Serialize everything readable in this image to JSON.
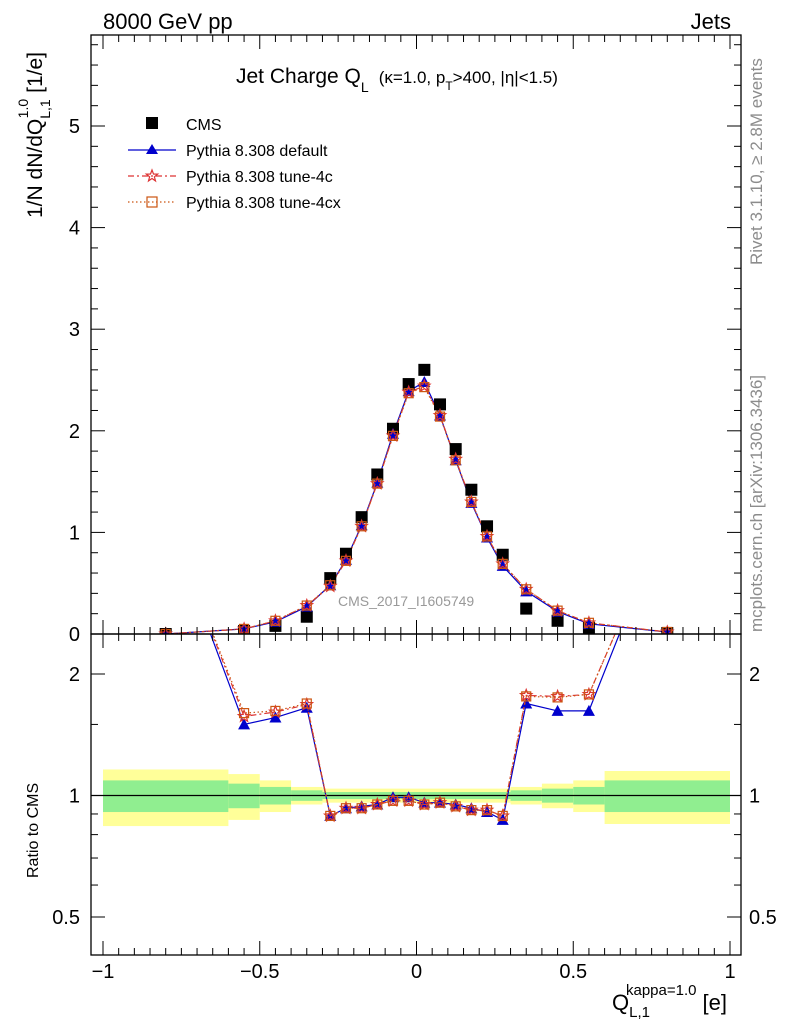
{
  "header": {
    "left": "8000 GeV pp",
    "right": "Jets"
  },
  "side_text": {
    "rivet": "Rivet 3.1.10, ≥ 2.8M events",
    "mcplots": "mcplots.cern.ch [arXiv:1306.3436]"
  },
  "chart_data": [
    {
      "type": "line",
      "title": "Jet Charge Q_L (κ=1.0, p_T>400, |η|<1.5)",
      "title_parts": {
        "main": "Jet Charge Q",
        "main_sub": "L",
        "paren_open": "(κ=1.0, p",
        "pt_sub": "T",
        "paren_rest": ">400, |η|<1.5)"
      },
      "ylabel": "1/N dN/dQ_{L,1}^{1.0} [1/e]",
      "ylabel_parts": {
        "pre": "1/N dN/dQ",
        "sub": "L,1",
        "sup": "1.0",
        "post": "[1/e]"
      },
      "watermark": "CMS_2017_I1605749",
      "xlim": [
        -1.05,
        1.05
      ],
      "ylim": [
        0,
        5.9
      ],
      "yticks": [
        0,
        1,
        2,
        3,
        4,
        5
      ],
      "yticklabels": [
        "0",
        "1",
        "2",
        "3",
        "4",
        "5"
      ],
      "legend_position": "top-left",
      "x": [
        -0.8,
        -0.55,
        -0.45,
        -0.35,
        -0.275,
        -0.225,
        -0.175,
        -0.125,
        -0.075,
        -0.025,
        0.025,
        0.075,
        0.125,
        0.175,
        0.225,
        0.275,
        0.35,
        0.45,
        0.55,
        0.8
      ],
      "series": [
        {
          "name": "CMS",
          "color": "#000000",
          "marker": "square",
          "values": [
            0.0,
            0.03,
            0.08,
            0.17,
            0.55,
            0.79,
            1.15,
            1.57,
            2.02,
            2.46,
            2.6,
            2.26,
            1.82,
            1.42,
            1.06,
            0.78,
            0.25,
            0.13,
            0.06,
            0.01
          ]
        },
        {
          "name": "Pythia 8.308 default",
          "color": "#0000cc",
          "marker": "triangle",
          "values": [
            0.0,
            0.05,
            0.12,
            0.27,
            0.48,
            0.73,
            1.07,
            1.49,
            1.97,
            2.39,
            2.48,
            2.15,
            1.71,
            1.29,
            0.95,
            0.67,
            0.42,
            0.22,
            0.1,
            0.02
          ]
        },
        {
          "name": "Pythia 8.308 tune-4c",
          "color": "#dd3333",
          "marker": "star",
          "values": [
            0.0,
            0.05,
            0.13,
            0.28,
            0.47,
            0.72,
            1.06,
            1.48,
            1.95,
            2.38,
            2.44,
            2.15,
            1.72,
            1.3,
            0.96,
            0.69,
            0.44,
            0.23,
            0.11,
            0.02
          ]
        },
        {
          "name": "Pythia 8.308 tune-4cx",
          "color": "#cc5511",
          "marker": "open-square",
          "values": [
            0.0,
            0.05,
            0.13,
            0.28,
            0.48,
            0.72,
            1.06,
            1.48,
            1.95,
            2.37,
            2.43,
            2.14,
            1.71,
            1.3,
            0.96,
            0.69,
            0.44,
            0.23,
            0.11,
            0.02
          ]
        }
      ]
    },
    {
      "type": "line",
      "ylabel": "Ratio to CMS",
      "xlabel": "Q_{L,1}^{kappa=1.0} [e]",
      "xlabel_parts": {
        "pre": "Q",
        "sub": "L,1",
        "sup": "kappa=1.0",
        "post": "[e]"
      },
      "scale": "log",
      "xlim": [
        -1.05,
        1.05
      ],
      "ylim": [
        0.4,
        2.45
      ],
      "yticks": [
        0.5,
        1,
        2
      ],
      "yticklabels": [
        "0.5",
        "1",
        "2"
      ],
      "xticks": [
        -1,
        -0.5,
        0,
        0.5,
        1
      ],
      "xticklabels": [
        "−1",
        "−0.5",
        "0",
        "0.5",
        "1"
      ],
      "reference": 1,
      "band_edges": [
        -1,
        -0.6,
        -0.5,
        -0.4,
        -0.3,
        0.3,
        0.4,
        0.5,
        0.6,
        1
      ],
      "band_inner": [
        0.09,
        0.07,
        0.05,
        0.03,
        0.02,
        0.03,
        0.04,
        0.05,
        0.09
      ],
      "band_outer": [
        0.16,
        0.13,
        0.09,
        0.05,
        0.04,
        0.05,
        0.07,
        0.09,
        0.15
      ],
      "band_inner_color": "#90ee90",
      "band_outer_color": "#ffff99",
      "series": [
        {
          "name": "Pythia 8.308 default",
          "color": "#0000cc",
          "marker": "triangle",
          "values": [
            5.0,
            1.5,
            1.56,
            1.65,
            0.89,
            0.93,
            0.94,
            0.95,
            0.99,
            0.99,
            0.96,
            0.96,
            0.95,
            0.93,
            0.91,
            0.87,
            1.69,
            1.62,
            1.62,
            5.0
          ]
        },
        {
          "name": "Pythia 8.308 tune-4c",
          "color": "#dd3333",
          "marker": "star",
          "values": [
            5.0,
            1.57,
            1.61,
            1.68,
            0.89,
            0.93,
            0.93,
            0.95,
            0.97,
            0.97,
            0.95,
            0.96,
            0.94,
            0.92,
            0.92,
            0.89,
            1.77,
            1.76,
            1.78,
            5.0
          ]
        },
        {
          "name": "Pythia 8.308 tune-4cx",
          "color": "#cc5511",
          "marker": "open-square",
          "values": [
            5.0,
            1.6,
            1.62,
            1.69,
            0.89,
            0.93,
            0.93,
            0.95,
            0.97,
            0.97,
            0.95,
            0.96,
            0.94,
            0.92,
            0.92,
            0.89,
            1.76,
            1.75,
            1.78,
            5.0
          ]
        }
      ]
    }
  ]
}
